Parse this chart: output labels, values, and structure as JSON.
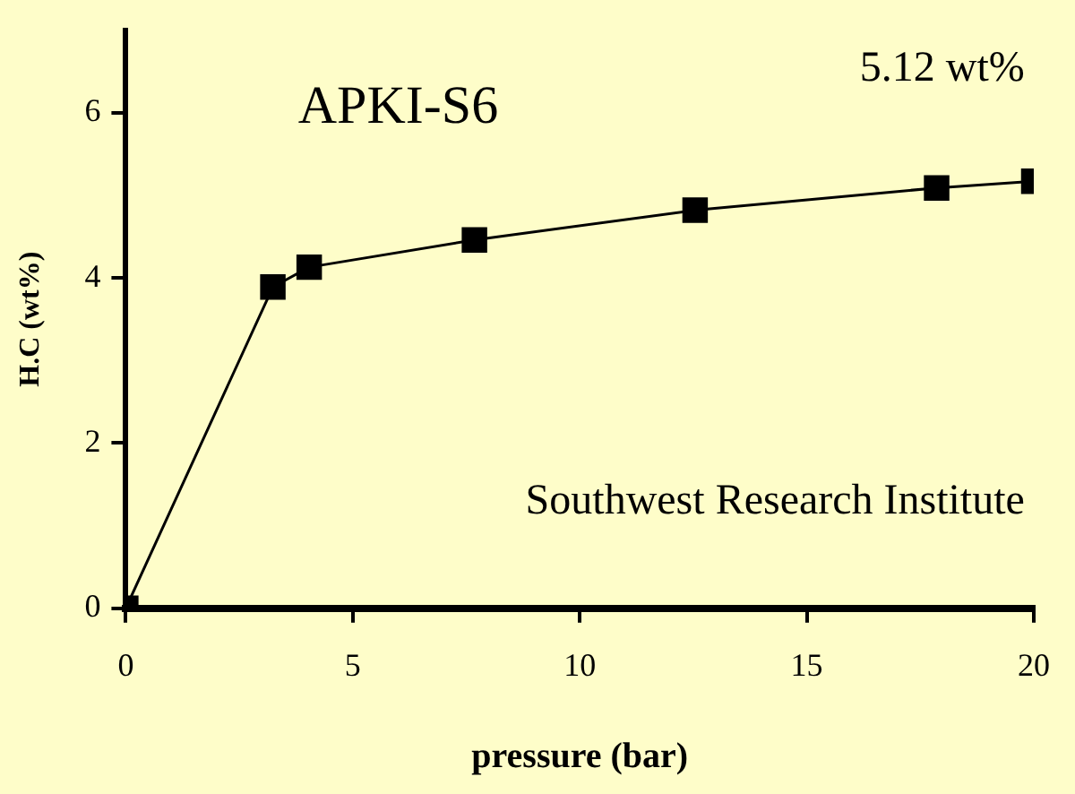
{
  "chart_data": {
    "type": "line",
    "xlabel": "pressure (bar)",
    "ylabel": "H.C (wt%)",
    "x": [
      0,
      3.24,
      4.04,
      7.68,
      12.54,
      17.86,
      20
    ],
    "series": [
      {
        "color": "#000000",
        "values": [
          0,
          3.89,
          4.13,
          4.46,
          4.82,
          5.09,
          5.17
        ]
      }
    ],
    "xlim": [
      0,
      20
    ],
    "xticks": [
      0,
      5,
      10,
      15,
      20
    ],
    "ylim": [
      0,
      7
    ],
    "yticks": [
      0,
      2,
      4,
      6
    ],
    "marker": "square",
    "line_style": "solid",
    "grid": false,
    "legend": false,
    "annotations": [
      "APKI-S6",
      "5.12 wt%",
      "Southwest Research Institute"
    ]
  }
}
